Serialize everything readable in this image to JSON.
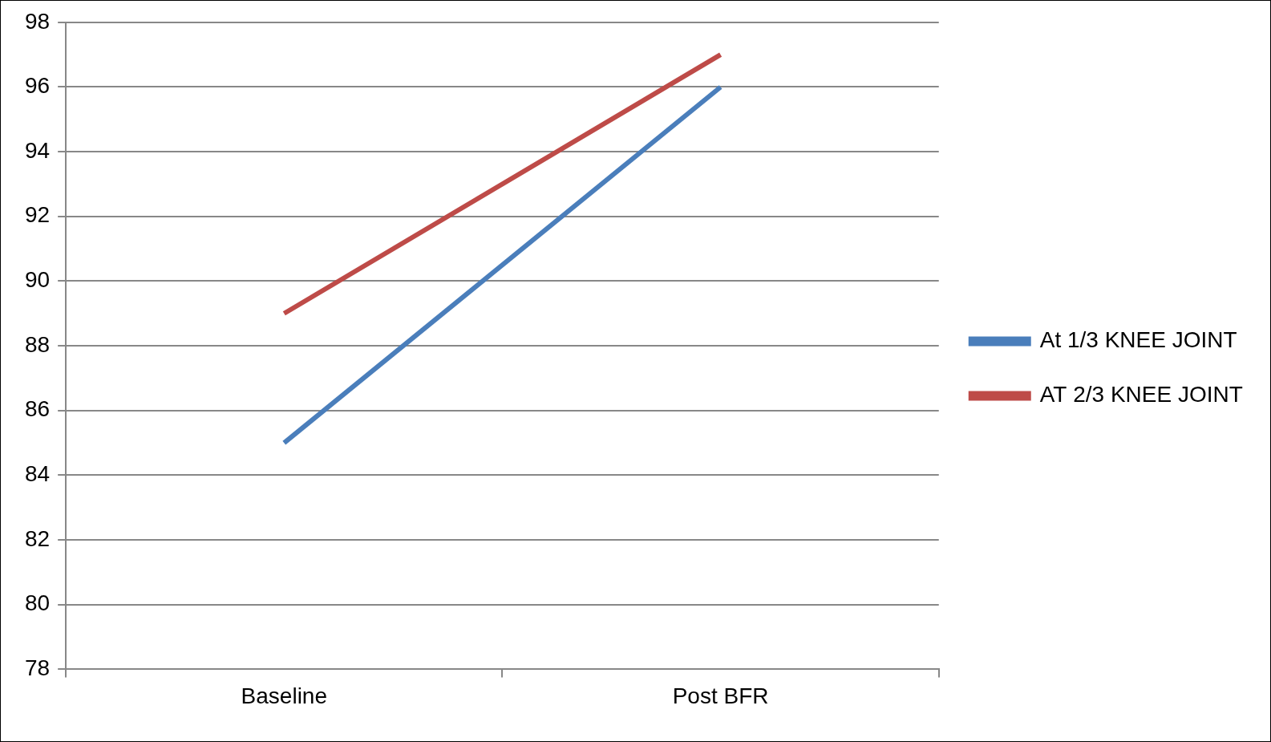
{
  "chart_data": {
    "type": "line",
    "categories": [
      "Baseline",
      "Post BFR"
    ],
    "series": [
      {
        "name": "At 1/3 KNEE JOINT",
        "color": "#4a7ebb",
        "values": [
          85,
          96
        ]
      },
      {
        "name": "AT 2/3 KNEE JOINT",
        "color": "#be4b48",
        "values": [
          89,
          97
        ]
      }
    ],
    "ylim": [
      78,
      98
    ],
    "yticks": [
      78,
      80,
      82,
      84,
      86,
      88,
      90,
      92,
      94,
      96,
      98
    ],
    "grid": true,
    "legend": "right",
    "marker": "none"
  }
}
